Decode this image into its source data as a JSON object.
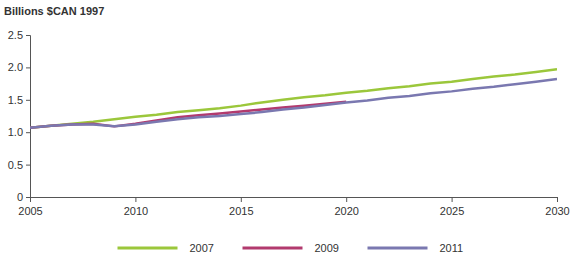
{
  "chart_data": {
    "type": "line",
    "y_label": "Billions $CAN 1997",
    "x": [
      2005,
      2006,
      2007,
      2008,
      2009,
      2010,
      2011,
      2012,
      2013,
      2014,
      2015,
      2016,
      2017,
      2018,
      2019,
      2020,
      2021,
      2022,
      2023,
      2024,
      2025,
      2026,
      2027,
      2028,
      2029,
      2030
    ],
    "series": [
      {
        "name": "2007",
        "color": "#9bc73b",
        "values": [
          1.07,
          1.1,
          1.13,
          1.16,
          1.2,
          1.24,
          1.27,
          1.31,
          1.34,
          1.37,
          1.41,
          1.46,
          1.5,
          1.54,
          1.57,
          1.61,
          1.64,
          1.68,
          1.71,
          1.75,
          1.78,
          1.82,
          1.86,
          1.89,
          1.93,
          1.97
        ]
      },
      {
        "name": "2009",
        "color": "#b23a6e",
        "values": [
          1.07,
          1.1,
          1.12,
          1.13,
          1.09,
          1.13,
          1.18,
          1.23,
          1.26,
          1.29,
          1.32,
          1.35,
          1.38,
          1.41,
          1.44,
          1.47,
          null,
          null,
          null,
          null,
          null,
          null,
          null,
          null,
          null,
          null
        ]
      },
      {
        "name": "2011",
        "color": "#7a78b0",
        "values": [
          1.07,
          1.1,
          1.12,
          1.12,
          1.09,
          1.12,
          1.16,
          1.2,
          1.23,
          1.25,
          1.28,
          1.31,
          1.35,
          1.38,
          1.42,
          1.46,
          1.49,
          1.53,
          1.56,
          1.6,
          1.63,
          1.67,
          1.7,
          1.74,
          1.78,
          1.82
        ]
      }
    ],
    "xlim": [
      2005,
      2030
    ],
    "xticks": [
      2005,
      2010,
      2015,
      2020,
      2025,
      2030
    ],
    "ylim": [
      0,
      2.5
    ],
    "yticks": [
      0,
      0.5,
      {
        "value": 1,
        "label": "1.0"
      },
      1.5,
      {
        "value": 2,
        "label": "2.0"
      },
      2.5
    ],
    "grid": false,
    "legend": "bottom"
  }
}
